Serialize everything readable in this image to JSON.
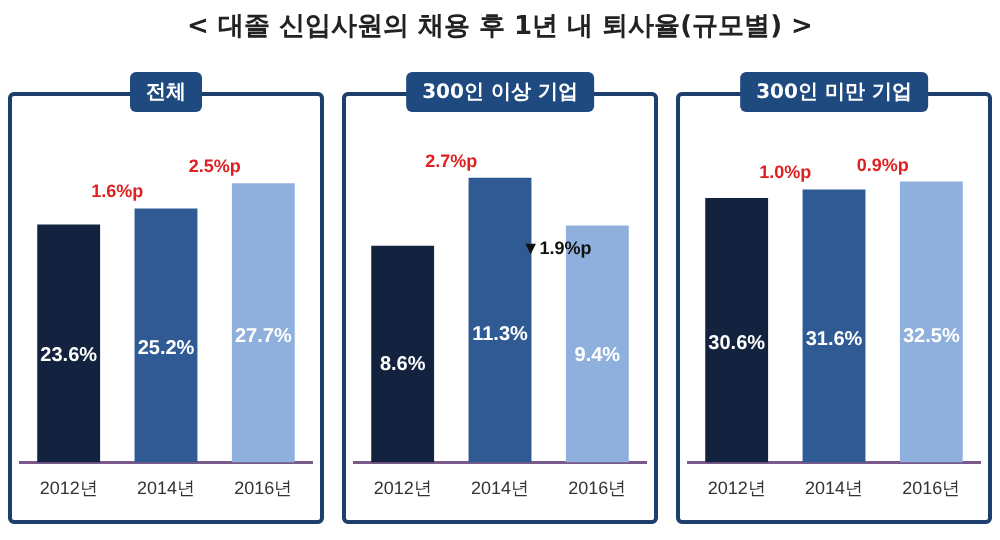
{
  "chart_data": [
    {
      "type": "bar",
      "title": "< 대졸 신입사원의 채용 후 1년 내 퇴사율(규모별) >",
      "subtitle": "전체",
      "categories": [
        "2012년",
        "2014년",
        "2016년"
      ],
      "values": [
        23.6,
        25.2,
        27.7
      ],
      "value_labels": [
        "23.6%",
        "25.2%",
        "27.7%"
      ],
      "colors": [
        "#13223f",
        "#2f5a94",
        "#8fb0dc"
      ],
      "tick_labels": "x",
      "legend": false,
      "annotations": [
        {
          "text": "1.6%p",
          "x": "2014년",
          "y": 25.2
        },
        {
          "text": "2.5%p",
          "x": "2016년",
          "y": 27.7
        }
      ]
    },
    {
      "type": "bar",
      "subtitle": "300인 이상 기업",
      "categories": [
        "2012년",
        "2014년",
        "2016년"
      ],
      "values": [
        8.6,
        11.3,
        9.4
      ],
      "value_labels": [
        "8.6%",
        "11.3%",
        "9.4%"
      ],
      "colors": [
        "#13223f",
        "#2f5a94",
        "#8fb0dc"
      ],
      "tick_labels": "x",
      "legend": false,
      "annotations": [
        {
          "text": "2.7%p",
          "x": "2014년",
          "y": 11.3
        },
        {
          "text": "▼1.9%p",
          "x": "2016년",
          "y": 9.4
        }
      ]
    },
    {
      "type": "bar",
      "subtitle": "300인 미만 기업",
      "categories": [
        "2012년",
        "2014년",
        "2016년"
      ],
      "values": [
        30.6,
        31.6,
        32.5
      ],
      "value_labels": [
        "30.6%",
        "31.6%",
        "32.5%"
      ],
      "colors": [
        "#13223f",
        "#2f5a94",
        "#8fb0dc"
      ],
      "tick_labels": "x",
      "legend": false,
      "annotations": [
        {
          "text": "1.0%p",
          "x": "2014년",
          "y": 31.6
        },
        {
          "text": "0.9%p",
          "x": "2016년",
          "y": 32.5
        }
      ]
    }
  ]
}
